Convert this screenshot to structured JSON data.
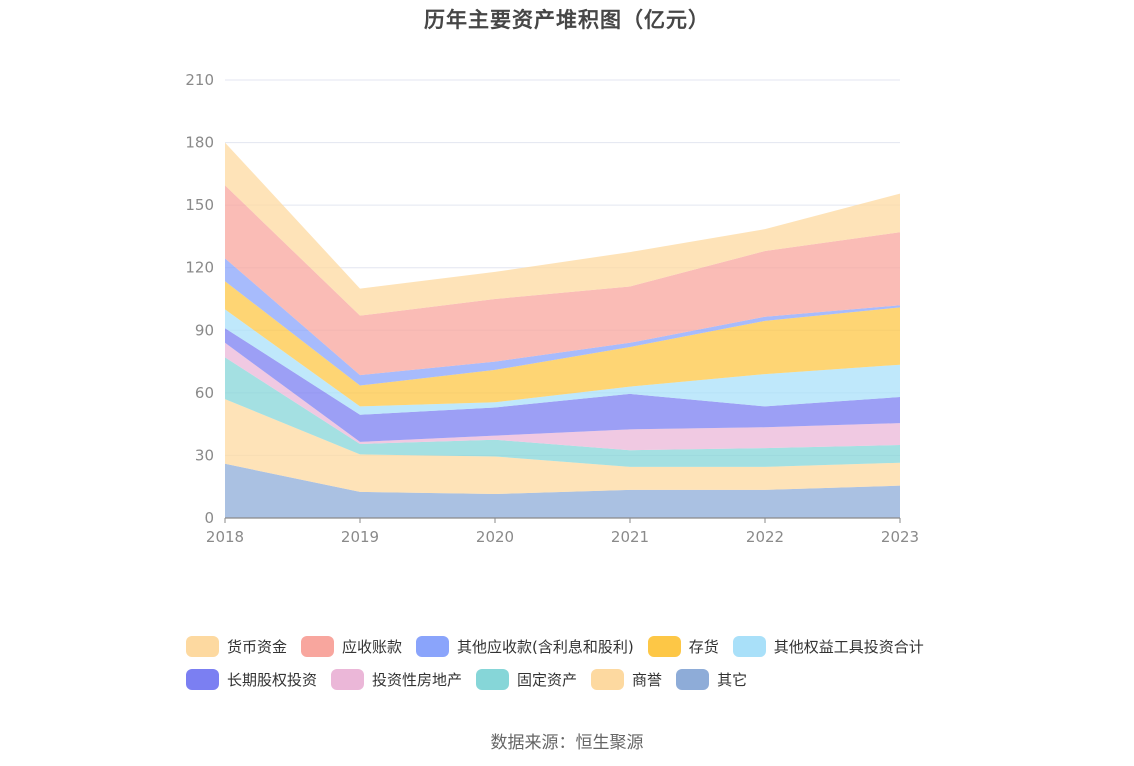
{
  "title": "历年主要资产堆积图（亿元）",
  "source": "数据来源：恒生聚源",
  "chart_data": {
    "type": "area",
    "stacked": true,
    "title": "历年主要资产堆积图（亿元）",
    "categories": [
      "2018",
      "2019",
      "2020",
      "2021",
      "2022",
      "2023"
    ],
    "ylim": [
      0,
      210
    ],
    "yticks": [
      "0",
      "30",
      "60",
      "90",
      "120",
      "150",
      "180",
      "210"
    ],
    "xlabel": "",
    "ylabel": "",
    "grid": true,
    "legend_position": "bottom",
    "series": [
      {
        "name": "其它",
        "color": "#8eacd8",
        "values": [
          26,
          12.5,
          11.5,
          13.5,
          13.5,
          15.5
        ]
      },
      {
        "name": "商誉",
        "color": "#fdd9a0",
        "values": [
          31,
          18,
          18,
          11,
          11,
          11
        ]
      },
      {
        "name": "固定资产",
        "color": "#86d6d8",
        "values": [
          20,
          5,
          8,
          8,
          9,
          8.5
        ]
      },
      {
        "name": "投资性房地产",
        "color": "#ebb7d8",
        "values": [
          7,
          1,
          2,
          10,
          10,
          10.5
        ]
      },
      {
        "name": "长期股权投资",
        "color": "#7b7ff2",
        "values": [
          7,
          13,
          13.5,
          17,
          10,
          12.5
        ]
      },
      {
        "name": "其他权益工具投资合计",
        "color": "#a9e0f9",
        "values": [
          9,
          4,
          2.5,
          3.5,
          15.5,
          15.5
        ]
      },
      {
        "name": "存货",
        "color": "#fdc746",
        "values": [
          13.5,
          10,
          15.5,
          19,
          25.5,
          27.5
        ]
      },
      {
        "name": "其他应收款(含利息和股利)",
        "color": "#8aa4fb",
        "values": [
          11,
          5,
          4,
          2,
          2,
          1
        ]
      },
      {
        "name": "应收账款",
        "color": "#f8a69e",
        "values": [
          35,
          28.5,
          30,
          27,
          31.5,
          35
        ]
      },
      {
        "name": "货币资金",
        "color": "#fdd9a0",
        "values": [
          20.5,
          13,
          13,
          16.5,
          10.5,
          18.5
        ]
      }
    ],
    "legend": [
      [
        {
          "name": "货币资金",
          "color": "#fdd9a0"
        },
        {
          "name": "应收账款",
          "color": "#f8a69e"
        },
        {
          "name": "其他应收款(含利息和股利)",
          "color": "#8aa4fb"
        },
        {
          "name": "存货",
          "color": "#fdc746"
        },
        {
          "name": "其他权益工具投资合计",
          "color": "#a9e0f9"
        }
      ],
      [
        {
          "name": "长期股权投资",
          "color": "#7b7ff2"
        },
        {
          "name": "投资性房地产",
          "color": "#ebb7d8"
        },
        {
          "name": "固定资产",
          "color": "#86d6d8"
        },
        {
          "name": "商誉",
          "color": "#fdd9a0"
        },
        {
          "name": "其它",
          "color": "#8eacd8"
        }
      ]
    ]
  }
}
